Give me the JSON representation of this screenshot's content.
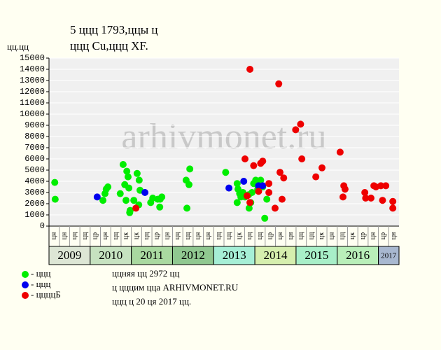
{
  "chart_data": {
    "type": "scatter",
    "title": "5 ццц 1793,ццы ц",
    "subtitle": "ццц Cu,ццц XF.",
    "y_label": "цц.цц",
    "watermark": "arhivmonet.ru",
    "ylim": [
      0,
      15000
    ],
    "yticks": [
      0,
      1000,
      2000,
      3000,
      4000,
      5000,
      6000,
      7000,
      8000,
      9000,
      10000,
      11000,
      12000,
      13000,
      14000,
      15000
    ],
    "grid": true,
    "xlim": [
      2009,
      2017.5
    ],
    "xticks": [
      2009,
      2010,
      2011,
      2012,
      2013,
      2014,
      2015,
      2016,
      2017
    ],
    "year_colors": [
      "#dde6d5",
      "#c6e2c0",
      "#a9d9a0",
      "#90c890",
      "#a6efd6",
      "#d6efae",
      "#a8efc8",
      "#b9efb9",
      "#a8b8d0"
    ],
    "period_labels": [
      "цн",
      "цн",
      "цц",
      "цц",
      "цр",
      "цн",
      "цц",
      "цк",
      "цк",
      "цц",
      "цр",
      "цн",
      "цц",
      "цц",
      "цн",
      "цн",
      "цц",
      "цц",
      "цк",
      "цц",
      "цц",
      "цр",
      "цн",
      "цн",
      "цц",
      "цц",
      "цк",
      "цн",
      "цц",
      "цк",
      "цр",
      "цн",
      "цр",
      "цн"
    ],
    "series": [
      {
        "name": "- ццц",
        "color": "#00ee00",
        "x": [
          2009.14,
          2009.15,
          2010.31,
          2010.36,
          2010.39,
          2010.43,
          2010.8,
          2010.89,
          2010.92,
          2010.84,
          2010.94,
          2010.73,
          2010.87,
          2010.96,
          2010.97,
          2011.06,
          2011.14,
          2011.19,
          2011.21,
          2011.18,
          2011.47,
          2011.52,
          2011.64,
          2011.7,
          2011.74,
          2011.69,
          2012.33,
          2012.4,
          2012.42,
          2012.35,
          2013.29,
          2013.57,
          2013.59,
          2013.63,
          2013.66,
          2013.57,
          2013.71,
          2013.76,
          2013.85,
          2013.86,
          2013.9,
          2013.93,
          2013.97,
          2014.02,
          2014.07,
          2014.14,
          2014.19,
          2014.24,
          2014.29
        ],
        "values": [
          3900,
          2400,
          2300,
          2900,
          3300,
          3500,
          5500,
          4900,
          4400,
          3700,
          3400,
          2900,
          2300,
          1200,
          1400,
          2300,
          4700,
          4100,
          3200,
          1900,
          2100,
          2500,
          2400,
          2400,
          2600,
          1700,
          4100,
          3700,
          5100,
          1600,
          4800,
          3800,
          3300,
          2900,
          2600,
          2100,
          3000,
          2600,
          2800,
          1600,
          2100,
          3000,
          3800,
          4100,
          3300,
          4100,
          3500,
          700,
          2400
        ]
      },
      {
        "name": "- ццц",
        "color": "#0000ee",
        "x": [
          2010.17,
          2011.33,
          2013.37,
          2013.73,
          2014.09,
          2014.19
        ],
        "values": [
          2600,
          3000,
          3400,
          4000,
          3600,
          3600
        ]
      },
      {
        "name": "- ццццБ",
        "color": "#ee0000",
        "x": [
          2011.11,
          2013.88,
          2013.76,
          2013.97,
          2014.14,
          2014.19,
          2013.81,
          2013.88,
          2014.09,
          2014.34,
          2014.34,
          2014.49,
          2014.58,
          2014.61,
          2014.66,
          2014.7,
          2014.99,
          2015.11,
          2015.14,
          2015.48,
          2015.63,
          2016.07,
          2016.16,
          2016.19,
          2016.14,
          2016.67,
          2016.69,
          2016.82,
          2016.89,
          2016.94,
          2017.06,
          2017.18,
          2017.1,
          2017.35,
          2017.35
        ],
        "values": [
          1600,
          14000,
          6000,
          5400,
          5600,
          5800,
          2700,
          2100,
          3100,
          3800,
          3000,
          1600,
          12700,
          4800,
          2400,
          4300,
          8600,
          9100,
          6000,
          4400,
          5200,
          6600,
          3600,
          3300,
          2600,
          3000,
          2500,
          2500,
          3600,
          3500,
          3600,
          3600,
          2300,
          2200,
          1600
        ]
      }
    ],
    "notes": [
      "ццняя цц 2972 цц",
      "ц цццим цца ARHIVMONET.RU",
      "ццц ц 20 ця 2017 цц."
    ]
  }
}
